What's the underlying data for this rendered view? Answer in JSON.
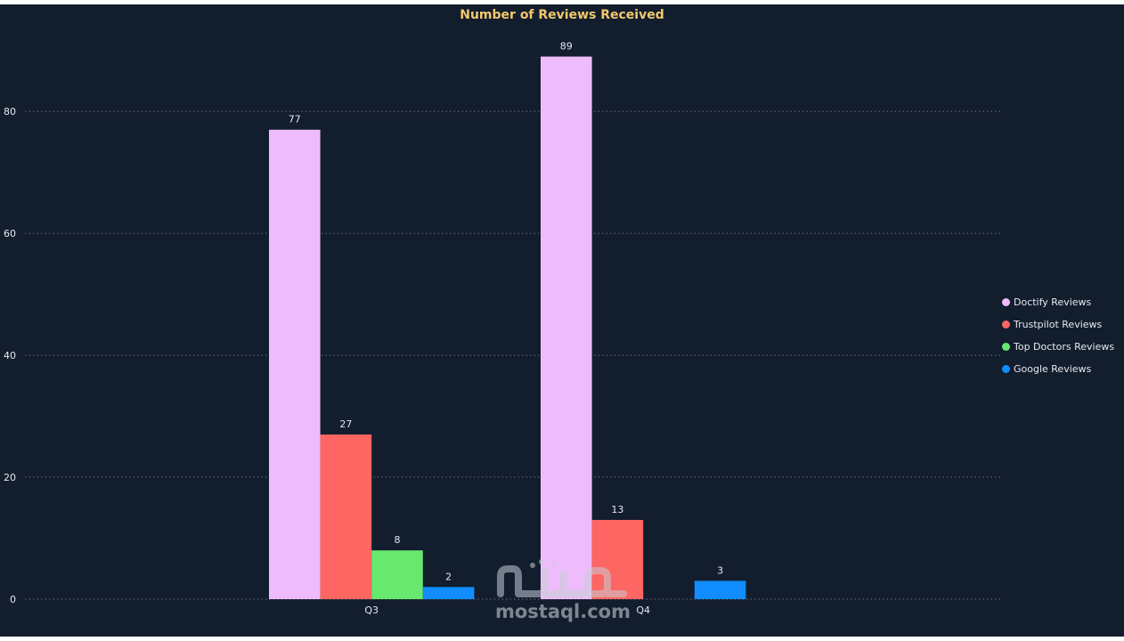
{
  "colors": {
    "background": "#121d2e",
    "title": "#f2c86b",
    "text": "#e6e8ee",
    "grid": "#6b7380"
  },
  "watermark": {
    "text": "mostaql.com"
  },
  "chart_data": {
    "type": "bar",
    "title": "Number of Reviews Received",
    "xlabel": "",
    "ylabel": "",
    "categories": [
      "Q3",
      "Q4"
    ],
    "ylim": [
      0,
      92
    ],
    "yticks": [
      0,
      20,
      40,
      60,
      80
    ],
    "grid": true,
    "legend_position": "right",
    "series": [
      {
        "name": "Doctify Reviews",
        "color": "#eebcfb",
        "values": [
          77,
          89
        ]
      },
      {
        "name": "Trustpilot Reviews",
        "color": "#fd6662",
        "values": [
          27,
          13
        ]
      },
      {
        "name": "Top Doctors Reviews",
        "color": "#68e86e",
        "values": [
          8,
          null
        ]
      },
      {
        "name": "Google Reviews",
        "color": "#118dff",
        "values": [
          2,
          3
        ]
      }
    ]
  }
}
